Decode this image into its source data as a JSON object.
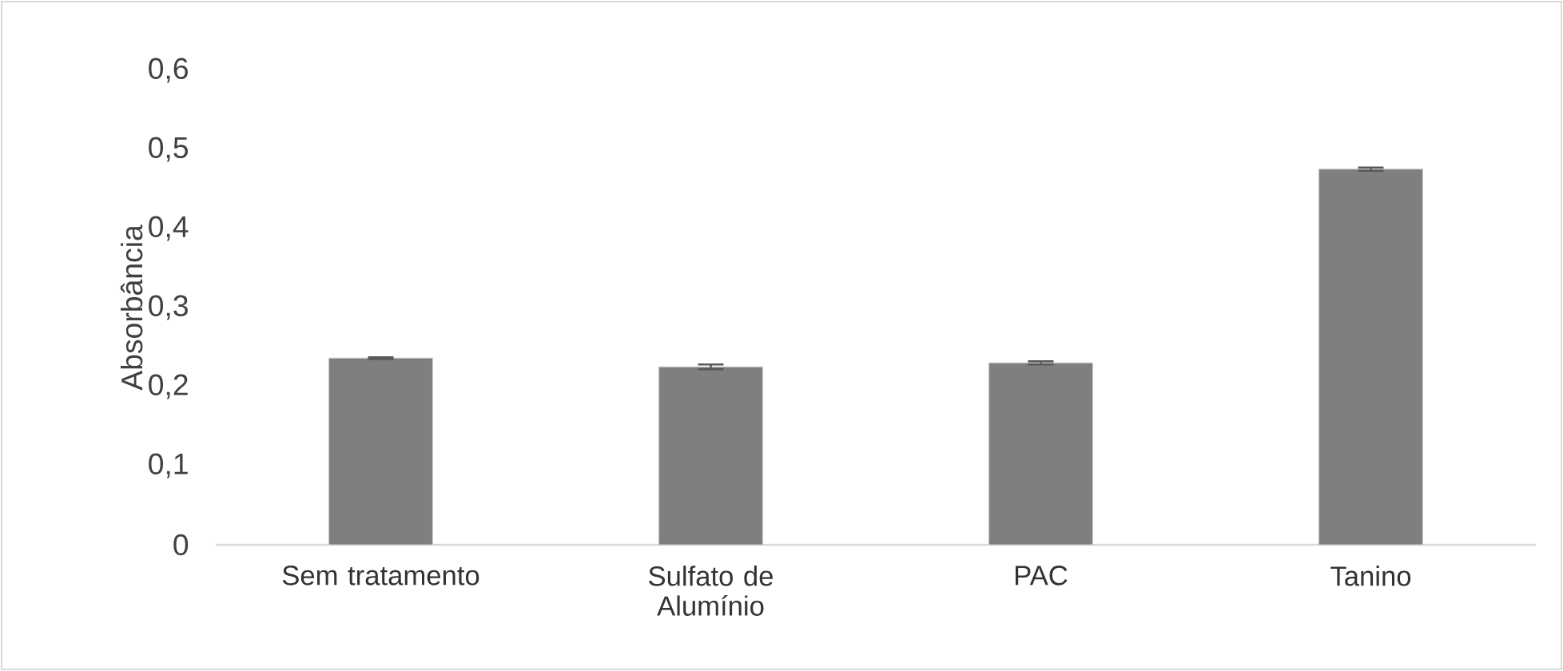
{
  "chart_data": {
    "type": "bar",
    "ylabel": "Absorbância",
    "categories": [
      "Sem tratamento",
      "Sulfato de Alumínio",
      "PAC",
      "Tanino"
    ],
    "values": [
      0.236,
      0.225,
      0.23,
      0.475
    ],
    "errors": [
      0.001,
      0.003,
      0.002,
      0.002
    ],
    "color": "#7f7f7f",
    "ylim": [
      0,
      0.6
    ],
    "yticks": [
      0,
      {
        "value": 0.1,
        "label": "0,1"
      },
      {
        "value": 0.2,
        "label": "0,2"
      },
      {
        "value": 0.3,
        "label": "0,3"
      },
      {
        "value": 0.4,
        "label": "0,4"
      },
      {
        "value": 0.5,
        "label": "0,5"
      },
      {
        "value": 0.6,
        "label": "0,6"
      }
    ]
  }
}
